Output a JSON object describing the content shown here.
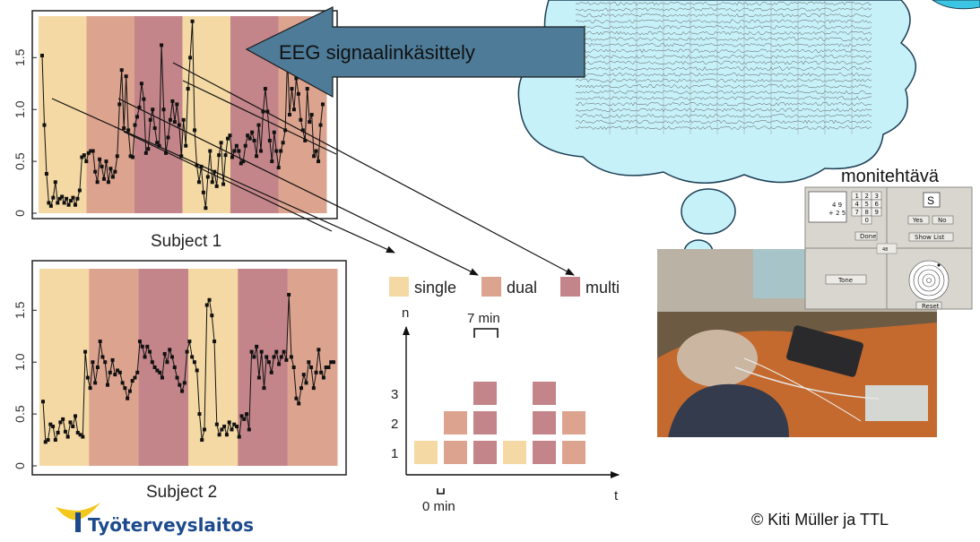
{
  "colors": {
    "single": "#f4d9a4",
    "dual": "#dca48f",
    "multi": "#c3858a",
    "arrow_banner": "#4d7b98",
    "cloud_fill": "#c7f1f9",
    "logo_blue": "#1c4a8c",
    "logo_yellow": "#f2c81e"
  },
  "banner": {
    "text": "EEG signaalinkäsittely"
  },
  "multitask_label": "monitehtävä",
  "copyright": "© Kiti Müller ja TTL",
  "logo": {
    "text": "Työterveyslaitos"
  },
  "task_panel": {
    "numpad": [
      "1",
      "2",
      "3",
      "4",
      "5",
      "6",
      "7",
      "8",
      "9",
      "0"
    ],
    "sum_top": "4 9",
    "sum_bottom": "+ 2 5",
    "done_button": "Done",
    "letter": "S",
    "yes_button": "Yes",
    "no_button": "No",
    "show_list_button": "Show List",
    "center_value": "48",
    "tone_button": "Tone",
    "reset_button": "Reset"
  },
  "legend": [
    {
      "key": "single",
      "label": "single"
    },
    {
      "key": "dual",
      "label": "dual"
    },
    {
      "key": "multi",
      "label": "multi"
    }
  ],
  "chart_data": [
    {
      "type": "line",
      "title": "Subject 1",
      "y_ticks": [
        "0",
        "0.5",
        "1.0",
        "1.5"
      ],
      "ylim": [
        0,
        1.9
      ],
      "background_bands": [
        "single",
        "dual",
        "multi",
        "single",
        "multi",
        "dual"
      ],
      "values": [
        1.52,
        0.85,
        0.38,
        0.1,
        0.07,
        0.15,
        0.3,
        0.1,
        0.14,
        0.16,
        0.1,
        0.14,
        0.08,
        0.12,
        0.15,
        0.08,
        0.14,
        0.22,
        0.54,
        0.56,
        0.5,
        0.58,
        0.6,
        0.6,
        0.4,
        0.3,
        0.52,
        0.45,
        0.33,
        0.5,
        0.3,
        0.43,
        0.35,
        0.4,
        0.55,
        1.05,
        1.38,
        0.82,
        1.32,
        0.8,
        0.55,
        0.54,
        0.85,
        0.93,
        1.02,
        1.25,
        1.1,
        0.58,
        0.62,
        0.9,
        1.0,
        0.82,
        0.68,
        0.65,
        1.62,
        1.0,
        0.58,
        0.73,
        0.9,
        1.08,
        0.88,
        1.05,
        0.85,
        0.55,
        0.9,
        0.65,
        1.2,
        1.5,
        1.85,
        0.8,
        0.46,
        0.3,
        0.45,
        0.2,
        0.05,
        0.35,
        0.6,
        0.3,
        0.4,
        0.26,
        0.56,
        0.68,
        0.28,
        0.56,
        0.72,
        0.75,
        0.54,
        0.6,
        0.65,
        0.6,
        0.48,
        0.5,
        0.65,
        0.75,
        0.72,
        0.78,
        0.7,
        0.55,
        0.85,
        0.6,
        0.98,
        1.2,
        0.98,
        0.7,
        0.5,
        0.78,
        0.6,
        0.44,
        0.6,
        0.68,
        0.8,
        1.5,
        0.95,
        1.2,
        1.0,
        1.3,
        1.15,
        0.9,
        0.8,
        0.7,
        1.2,
        0.88,
        0.95,
        0.55,
        0.6,
        0.5,
        0.85,
        1.05
      ]
    },
    {
      "type": "line",
      "title": "Subject 2",
      "y_ticks": [
        "0",
        "0.5",
        "1.0",
        "1.5"
      ],
      "ylim": [
        0,
        1.9
      ],
      "background_bands": [
        "single",
        "dual",
        "multi",
        "single",
        "multi",
        "dual"
      ],
      "values": [
        0.62,
        0.23,
        0.25,
        0.4,
        0.38,
        0.25,
        0.32,
        0.42,
        0.45,
        0.33,
        0.28,
        0.42,
        0.38,
        0.48,
        0.32,
        0.3,
        0.28,
        1.1,
        0.85,
        0.75,
        1.0,
        0.8,
        0.95,
        1.2,
        1.05,
        1.0,
        0.78,
        0.9,
        1.02,
        0.88,
        0.92,
        0.9,
        0.8,
        0.75,
        0.65,
        0.72,
        0.82,
        0.85,
        0.9,
        1.2,
        1.15,
        1.05,
        1.15,
        1.1,
        1.0,
        0.95,
        0.92,
        0.9,
        0.85,
        1.08,
        1.0,
        1.12,
        1.05,
        0.95,
        0.85,
        0.78,
        0.72,
        0.8,
        1.1,
        1.2,
        1.05,
        1.0,
        0.92,
        0.5,
        0.25,
        0.35,
        1.55,
        1.6,
        1.45,
        1.2,
        0.4,
        0.3,
        0.35,
        0.38,
        0.3,
        0.42,
        0.35,
        0.4,
        0.38,
        0.28,
        0.48,
        0.45,
        0.5,
        0.35,
        1.1,
        1.05,
        1.15,
        0.85,
        1.1,
        0.75,
        1.05,
        1.0,
        0.9,
        1.05,
        1.1,
        0.98,
        1.05,
        1.1,
        1.02,
        1.65,
        1.05,
        0.95,
        0.65,
        0.6,
        0.75,
        0.88,
        0.8,
        1.0,
        0.95,
        0.75,
        0.9,
        1.12,
        0.9,
        0.85,
        0.95,
        0.95,
        1.0,
        1.0
      ]
    },
    {
      "type": "bar",
      "y_axis_label": "n",
      "x_axis_label": "t",
      "y_ticks": [
        "1",
        "2",
        "3"
      ],
      "time_start_label": "0 min",
      "block_duration_label": "7 min",
      "blocks": [
        {
          "condition": "single",
          "count": 1
        },
        {
          "condition": "dual",
          "count": 2
        },
        {
          "condition": "multi",
          "count": 3
        },
        {
          "condition": "single",
          "count": 1
        },
        {
          "condition": "multi",
          "count": 3
        },
        {
          "condition": "dual",
          "count": 2
        }
      ]
    }
  ]
}
